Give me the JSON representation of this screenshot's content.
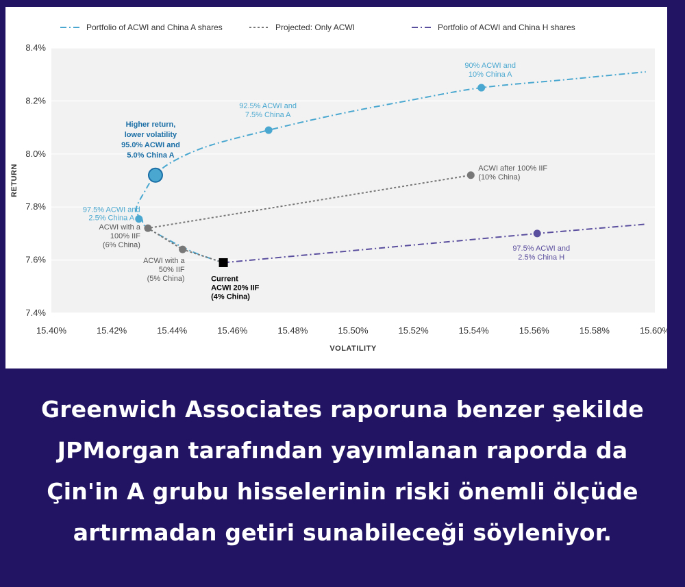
{
  "chart_data": {
    "type": "line",
    "xlabel": "VOLATILITY",
    "ylabel": "RETURN",
    "xlim": [
      15.4,
      15.6
    ],
    "ylim": [
      7.4,
      8.4
    ],
    "x_ticks": [
      "15.40%",
      "15.42%",
      "15.44%",
      "15.46%",
      "15.48%",
      "15.50%",
      "15.52%",
      "15.54%",
      "15.56%",
      "15.58%",
      "15.60%"
    ],
    "y_ticks": [
      "7.4%",
      "7.6%",
      "7.8%",
      "8.0%",
      "8.2%",
      "8.4%"
    ],
    "legend_position": "top",
    "grid": true,
    "series": [
      {
        "name": "Portfolio of ACWI and China A shares",
        "color": "#4aa8d0",
        "style": "dash-dot",
        "curve": [
          [
            15.457,
            7.59
          ],
          [
            15.446,
            7.635
          ],
          [
            15.432,
            7.72
          ],
          [
            15.43,
            7.755
          ],
          [
            15.428,
            7.79
          ],
          [
            15.431,
            7.86
          ],
          [
            15.4345,
            7.92
          ],
          [
            15.44,
            7.97
          ],
          [
            15.452,
            8.03
          ],
          [
            15.472,
            8.09
          ],
          [
            15.495,
            8.15
          ],
          [
            15.52,
            8.205
          ],
          [
            15.5425,
            8.25
          ],
          [
            15.57,
            8.28
          ],
          [
            15.597,
            8.31
          ]
        ],
        "points": [
          {
            "x": 15.429,
            "y": 7.755,
            "label": [
              "97.5% ACWI and",
              "2.5% China A"
            ]
          },
          {
            "x": 15.4345,
            "y": 7.92,
            "label": [
              "Higher return,",
              "lower volatility",
              "95.0% ACWI and",
              "5.0% China A"
            ],
            "highlight": true
          },
          {
            "x": 15.472,
            "y": 8.09,
            "label": [
              "92.5% ACWI and",
              "7.5% China A"
            ]
          },
          {
            "x": 15.5425,
            "y": 8.25,
            "label": [
              "90% ACWI and",
              "10% China A"
            ]
          }
        ]
      },
      {
        "name": "Projected: Only ACWI",
        "color": "#777777",
        "style": "dotted",
        "curve": [
          [
            15.457,
            7.59
          ],
          [
            15.4435,
            7.64
          ],
          [
            15.432,
            7.72
          ],
          [
            15.539,
            7.92
          ]
        ],
        "points": [
          {
            "x": 15.432,
            "y": 7.72,
            "label": [
              "ACWI with a",
              "100% IIF",
              "(6% China)"
            ]
          },
          {
            "x": 15.4435,
            "y": 7.64,
            "label": [
              "ACWI with a",
              "50% IIF",
              "(5% China)"
            ]
          },
          {
            "x": 15.539,
            "y": 7.92,
            "label": [
              "ACWI after 100% IIF",
              "(10% China)"
            ]
          }
        ]
      },
      {
        "name": "Portfolio of ACWI and China H shares",
        "color": "#5a4e9e",
        "style": "dash-dot",
        "curve": [
          [
            15.457,
            7.59
          ],
          [
            15.561,
            7.7
          ],
          [
            15.597,
            7.735
          ]
        ],
        "points": [
          {
            "x": 15.561,
            "y": 7.7,
            "label": [
              "97.5% ACWI and",
              "2.5% China H"
            ]
          }
        ]
      }
    ],
    "current": {
      "x": 15.457,
      "y": 7.59,
      "label": [
        "Current",
        "ACWI 20% IIF",
        "(4% China)"
      ],
      "color": "#000000"
    }
  },
  "caption": {
    "lines": [
      "Greenwich Associates raporuna benzer şekilde",
      "JPMorgan tarafından yayımlanan raporda da",
      "Çin'in A grubu hisselerinin riski önemli ölçüde",
      "artırmadan getiri sunabileceği söyleniyor."
    ]
  },
  "colors": {
    "background": "#221462",
    "plot_bg": "#f2f2f2",
    "caption_text": "#ffffff",
    "highlight_text": "#1b6fa6"
  }
}
